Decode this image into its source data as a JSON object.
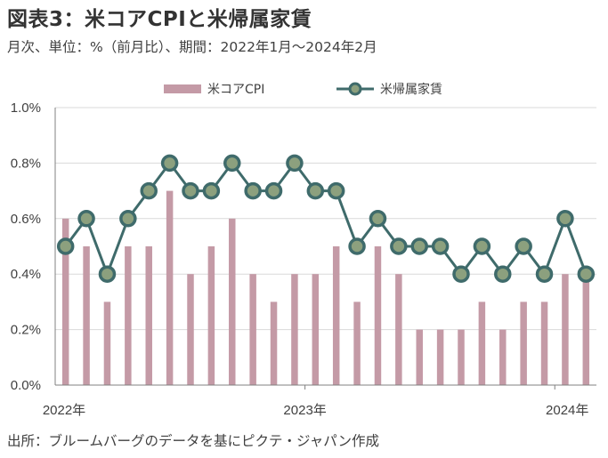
{
  "title": "図表3：米コアCPIと米帰属家賃",
  "subtitle": "月次、単位：%（前月比）、期間：2022年1月～2024年2月",
  "source": "出所：ブルームバーグのデータを基にピクテ・ジャパン作成",
  "colors": {
    "bar": "#c49aa6",
    "line": "#3f6b6b",
    "marker_fill": "#8ca07e",
    "grid": "#d9d9d9",
    "axis": "#808080"
  },
  "chart_data": {
    "type": "bar+line",
    "x": [
      "2022-01",
      "2022-02",
      "2022-03",
      "2022-04",
      "2022-05",
      "2022-06",
      "2022-07",
      "2022-08",
      "2022-09",
      "2022-10",
      "2022-11",
      "2022-12",
      "2023-01",
      "2023-02",
      "2023-03",
      "2023-04",
      "2023-05",
      "2023-06",
      "2023-07",
      "2023-08",
      "2023-09",
      "2023-10",
      "2023-11",
      "2023-12",
      "2024-01",
      "2024-02"
    ],
    "x_tick_labels": [
      {
        "label": "2022年",
        "index": 0
      },
      {
        "label": "2023年",
        "index": 12
      },
      {
        "label": "2024年",
        "index": 24
      }
    ],
    "series": [
      {
        "name": "米コアCPI",
        "type": "bar",
        "values": [
          0.6,
          0.5,
          0.3,
          0.5,
          0.5,
          0.7,
          0.4,
          0.5,
          0.6,
          0.4,
          0.3,
          0.4,
          0.4,
          0.5,
          0.3,
          0.5,
          0.4,
          0.2,
          0.2,
          0.2,
          0.3,
          0.2,
          0.3,
          0.3,
          0.4,
          0.4
        ]
      },
      {
        "name": "米帰属家賃",
        "type": "line",
        "values": [
          0.5,
          0.6,
          0.4,
          0.6,
          0.7,
          0.8,
          0.7,
          0.7,
          0.8,
          0.7,
          0.7,
          0.8,
          0.7,
          0.7,
          0.5,
          0.6,
          0.5,
          0.5,
          0.5,
          0.4,
          0.5,
          0.4,
          0.5,
          0.4,
          0.6,
          0.4
        ]
      }
    ],
    "yticks": [
      "0.0%",
      "0.2%",
      "0.4%",
      "0.6%",
      "0.8%",
      "1.0%"
    ],
    "ylim": [
      0,
      1.0
    ],
    "legend_position": "top-center",
    "grid": true
  }
}
